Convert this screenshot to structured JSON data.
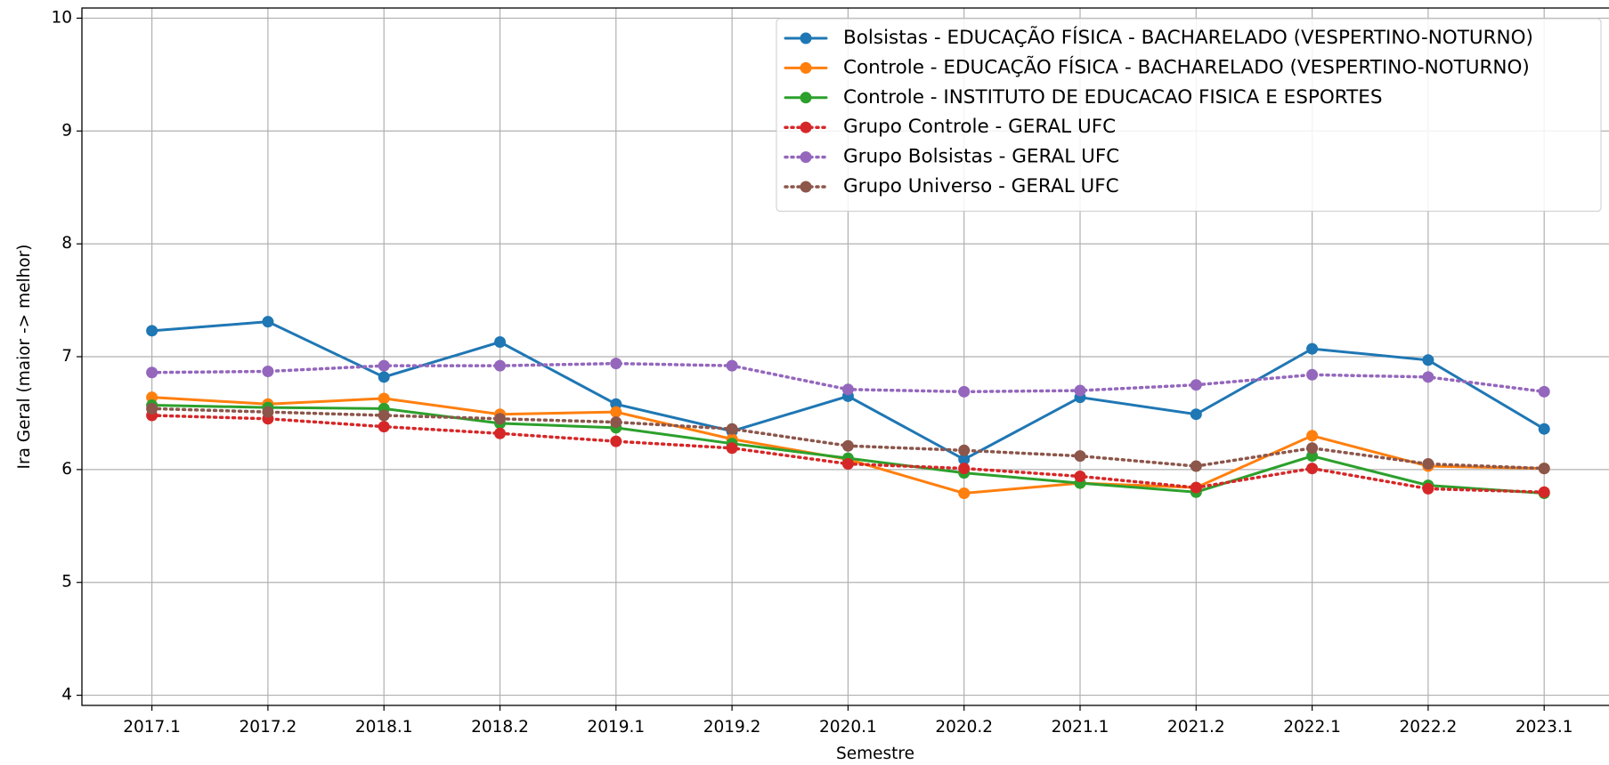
{
  "chart_data": {
    "type": "line",
    "xlabel": "Semestre",
    "ylabel": "Ira Geral (maior -> melhor)",
    "categories": [
      "2017.1",
      "2017.2",
      "2018.1",
      "2018.2",
      "2019.1",
      "2019.2",
      "2020.1",
      "2020.2",
      "2021.1",
      "2021.2",
      "2022.1",
      "2022.2",
      "2023.1"
    ],
    "ylim": [
      3.91,
      10.09
    ],
    "yticks": [
      4,
      5,
      6,
      7,
      8,
      9,
      10
    ],
    "grid": true,
    "legend": "upper right",
    "series": [
      {
        "name": "Bolsistas - EDUCAÇÃO FÍSICA - BACHARELADO (VESPERTINO-NOTURNO)",
        "color": "#1f77b4",
        "style": "solid",
        "values": [
          7.23,
          7.31,
          6.82,
          7.13,
          6.58,
          6.34,
          6.65,
          6.09,
          6.64,
          6.49,
          7.07,
          6.97,
          6.36
        ]
      },
      {
        "name": "Controle - EDUCAÇÃO FÍSICA - BACHARELADO (VESPERTINO-NOTURNO)",
        "color": "#ff7f0e",
        "style": "solid",
        "values": [
          6.64,
          6.58,
          6.63,
          6.49,
          6.51,
          6.27,
          6.09,
          5.79,
          5.88,
          5.84,
          6.3,
          6.03,
          6.01
        ]
      },
      {
        "name": "Controle - INSTITUTO DE EDUCACAO FISICA E ESPORTES",
        "color": "#2ca02c",
        "style": "solid",
        "values": [
          6.57,
          6.55,
          6.54,
          6.41,
          6.37,
          6.23,
          6.1,
          5.97,
          5.88,
          5.8,
          6.12,
          5.86,
          5.79
        ]
      },
      {
        "name": "Grupo Controle - GERAL UFC",
        "color": "#d62728",
        "style": "dotted",
        "values": [
          6.48,
          6.45,
          6.38,
          6.32,
          6.25,
          6.19,
          6.05,
          6.01,
          5.94,
          5.84,
          6.01,
          5.83,
          5.8
        ]
      },
      {
        "name": "Grupo Bolsistas - GERAL UFC",
        "color": "#9467bd",
        "style": "dotted",
        "values": [
          6.86,
          6.87,
          6.92,
          6.92,
          6.94,
          6.92,
          6.71,
          6.69,
          6.7,
          6.75,
          6.84,
          6.82,
          6.69
        ]
      },
      {
        "name": "Grupo Universo - GERAL UFC",
        "color": "#8c564b",
        "style": "dotted",
        "values": [
          6.54,
          6.51,
          6.48,
          6.45,
          6.42,
          6.36,
          6.21,
          6.17,
          6.12,
          6.03,
          6.19,
          6.05,
          6.01
        ]
      }
    ]
  }
}
